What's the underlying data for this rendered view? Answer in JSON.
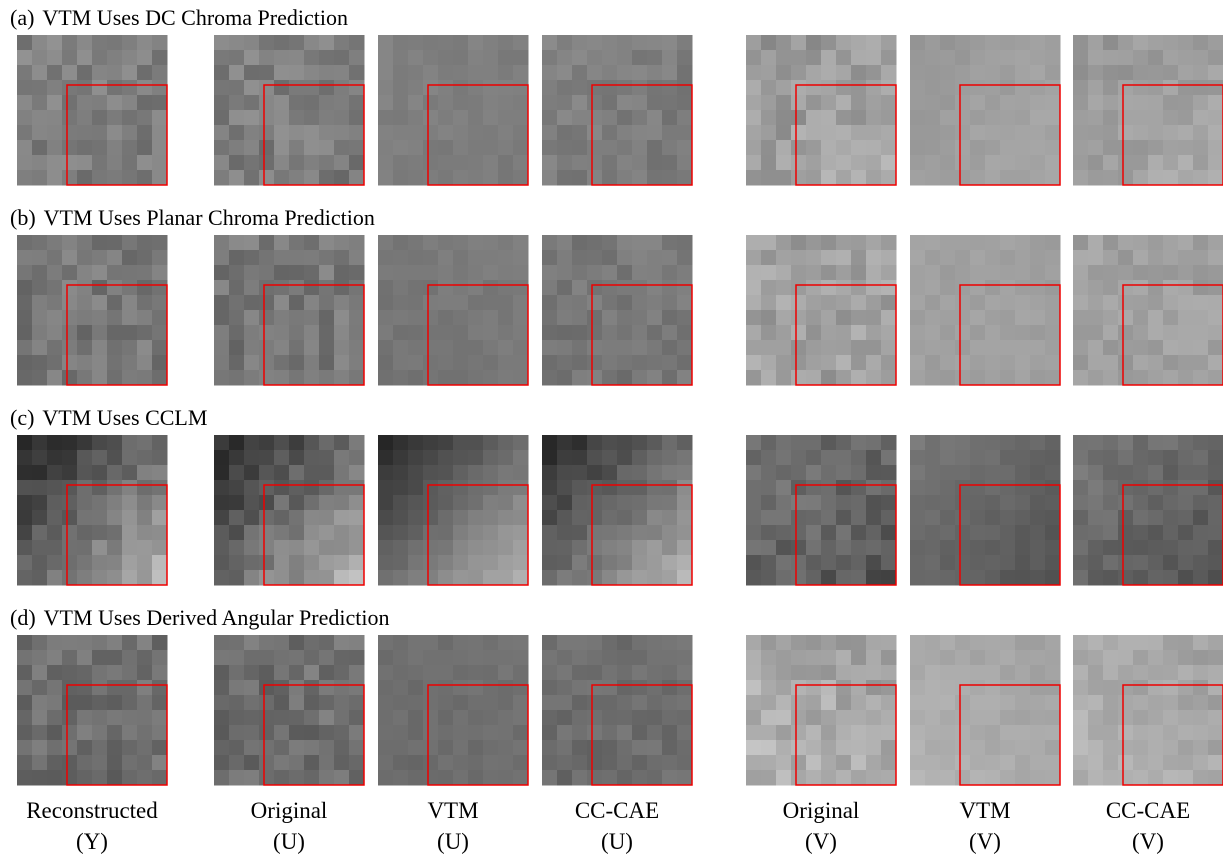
{
  "rows": [
    {
      "tag": "(a)",
      "title": "VTM Uses DC Chroma Prediction"
    },
    {
      "tag": "(b)",
      "title": "VTM Uses Planar Chroma Prediction"
    },
    {
      "tag": "(c)",
      "title": "VTM Uses CCLM"
    },
    {
      "tag": "(d)",
      "title": "VTM Uses Derived Angular Prediction"
    }
  ],
  "columns": [
    {
      "name": "Reconstructed",
      "channel": "(Y)"
    },
    {
      "name": "Original",
      "channel": "(U)"
    },
    {
      "name": "VTM",
      "channel": "(U)"
    },
    {
      "name": "CC-CAE",
      "channel": "(U)"
    },
    {
      "name": "Original",
      "channel": "(V)"
    },
    {
      "name": "VTM",
      "channel": "(V)"
    },
    {
      "name": "CC-CAE",
      "channel": "(V)"
    }
  ]
}
